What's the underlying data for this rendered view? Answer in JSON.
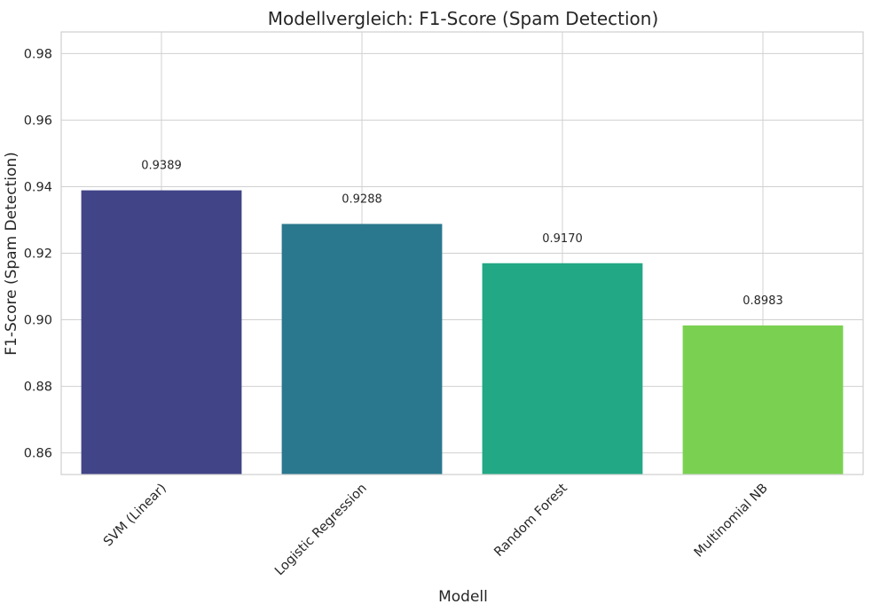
{
  "chart_data": {
    "type": "bar",
    "title": "Modellvergleich: F1-Score (Spam Detection)",
    "xlabel": "Modell",
    "ylabel": "F1-Score (Spam Detection)",
    "categories": [
      "SVM (Linear)",
      "Logistic Regression",
      "Random Forest",
      "Multinomial NB"
    ],
    "values": [
      0.9389,
      0.9288,
      0.917,
      0.8983
    ],
    "data_labels": [
      "0.9389",
      "0.9288",
      "0.9170",
      "0.8983"
    ],
    "colors": [
      "#414487",
      "#2a788e",
      "#22a884",
      "#7ad151"
    ],
    "ylim": [
      0.8535,
      0.9865
    ],
    "yticks": [
      0.86,
      0.88,
      0.9,
      0.92,
      0.94,
      0.96,
      0.98
    ],
    "ytick_labels": [
      "0.86",
      "0.88",
      "0.90",
      "0.92",
      "0.94",
      "0.96",
      "0.98"
    ],
    "grid": true,
    "xtick_rotation": 45
  }
}
